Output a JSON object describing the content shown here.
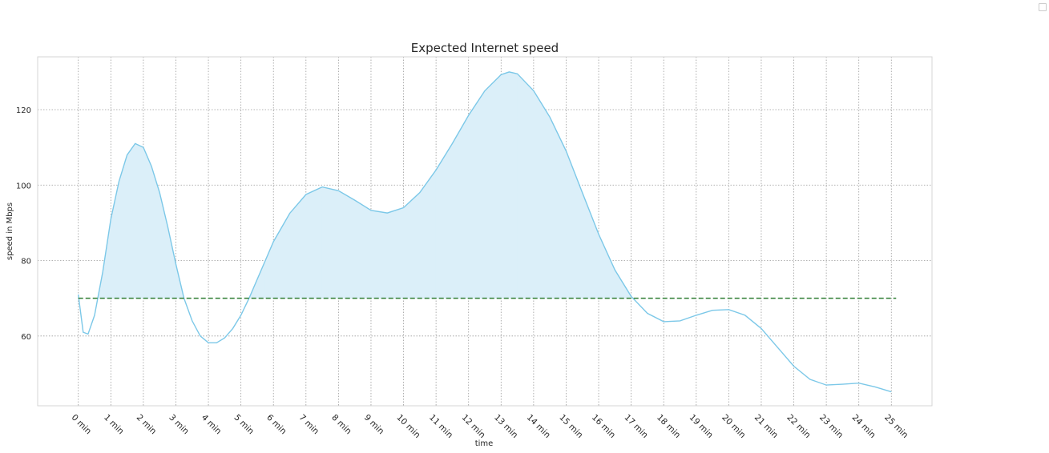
{
  "chart_data": {
    "type": "area",
    "title": "Expected Internet speed",
    "xlabel": "time",
    "ylabel": "speed in Mbps",
    "xlim": [
      -1.25,
      26.25
    ],
    "ylim": [
      41.5,
      134
    ],
    "grid": true,
    "legend": "top-right (empty)",
    "x_tick_labels": [
      "0 min",
      "1 min",
      "2 min",
      "3 min",
      "4 min",
      "5 min",
      "6 min",
      "7 min",
      "8 min",
      "9 min",
      "10 min",
      "11 min",
      "12 min",
      "13 min",
      "14 min",
      "15 min",
      "16 min",
      "17 min",
      "18 min",
      "19 min",
      "20 min",
      "21 min",
      "22 min",
      "23 min",
      "24 min",
      "25 min"
    ],
    "y_ticks": [
      60,
      80,
      100,
      120
    ],
    "threshold": {
      "value": 70,
      "x_range": [
        0,
        25
      ],
      "style": "dashed",
      "color": "#2e7d32"
    },
    "series": [
      {
        "line_color": "#7cc8e8",
        "fill_color": "#dbeff9",
        "fill_where": "above threshold",
        "points": [
          [
            0,
            71
          ],
          [
            0.15,
            61
          ],
          [
            0.3,
            60.5
          ],
          [
            0.5,
            65.5
          ],
          [
            0.75,
            77
          ],
          [
            1.0,
            91
          ],
          [
            1.25,
            101
          ],
          [
            1.5,
            108
          ],
          [
            1.75,
            111
          ],
          [
            2.0,
            110
          ],
          [
            2.25,
            105
          ],
          [
            2.5,
            98
          ],
          [
            2.75,
            89
          ],
          [
            3.0,
            79
          ],
          [
            3.25,
            70
          ],
          [
            3.5,
            64
          ],
          [
            3.75,
            60
          ],
          [
            4.0,
            58.2
          ],
          [
            4.25,
            58.2
          ],
          [
            4.5,
            59.5
          ],
          [
            4.75,
            62
          ],
          [
            5.0,
            65.5
          ],
          [
            5.25,
            70
          ],
          [
            5.5,
            75
          ],
          [
            5.75,
            80
          ],
          [
            6.0,
            85
          ],
          [
            6.5,
            92.5
          ],
          [
            7.0,
            97.5
          ],
          [
            7.5,
            99.5
          ],
          [
            8.0,
            98.5
          ],
          [
            8.5,
            96
          ],
          [
            9.0,
            93.3
          ],
          [
            9.5,
            92.6
          ],
          [
            10.0,
            94
          ],
          [
            10.5,
            98
          ],
          [
            11.0,
            104
          ],
          [
            11.5,
            111
          ],
          [
            12.0,
            118.5
          ],
          [
            12.5,
            125
          ],
          [
            13.0,
            129.3
          ],
          [
            13.25,
            130
          ],
          [
            13.5,
            129.5
          ],
          [
            14.0,
            125
          ],
          [
            14.5,
            118
          ],
          [
            15.0,
            109
          ],
          [
            15.5,
            98
          ],
          [
            16.0,
            87
          ],
          [
            16.5,
            77.5
          ],
          [
            17.0,
            70.5
          ],
          [
            17.5,
            66
          ],
          [
            18.0,
            63.8
          ],
          [
            18.5,
            64
          ],
          [
            19.0,
            65.5
          ],
          [
            19.5,
            66.8
          ],
          [
            20.0,
            67
          ],
          [
            20.5,
            65.5
          ],
          [
            21.0,
            62
          ],
          [
            21.5,
            57
          ],
          [
            22.0,
            52
          ],
          [
            22.5,
            48.5
          ],
          [
            23.0,
            47
          ],
          [
            23.5,
            47.2
          ],
          [
            24.0,
            47.5
          ],
          [
            24.5,
            46.5
          ],
          [
            25.0,
            45.2
          ]
        ]
      }
    ]
  }
}
